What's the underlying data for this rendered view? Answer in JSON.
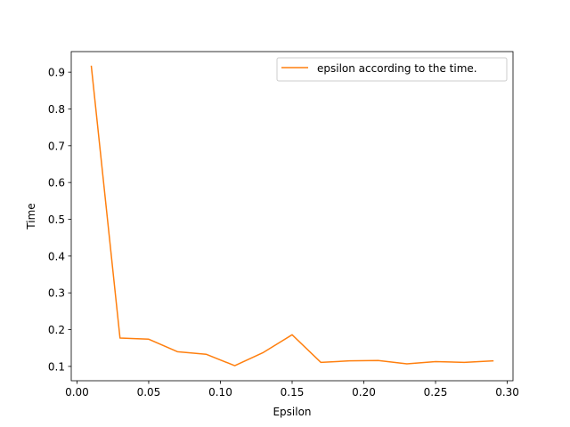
{
  "chart_data": {
    "type": "line",
    "title": "",
    "xlabel": "Epsilon",
    "ylabel": "Time",
    "xlim": [
      -0.004,
      0.304
    ],
    "ylim": [
      0.061,
      0.956
    ],
    "xticks": [
      0.0,
      0.05,
      0.1,
      0.15,
      0.2,
      0.25,
      0.3
    ],
    "xtick_labels": [
      "0.00",
      "0.05",
      "0.10",
      "0.15",
      "0.20",
      "0.25",
      "0.30"
    ],
    "yticks": [
      0.1,
      0.2,
      0.3,
      0.4,
      0.5,
      0.6,
      0.7,
      0.8,
      0.9
    ],
    "ytick_labels": [
      "0.1",
      "0.2",
      "0.3",
      "0.4",
      "0.5",
      "0.6",
      "0.7",
      "0.8",
      "0.9"
    ],
    "grid": false,
    "legend": {
      "placement": "upper-right"
    },
    "series": [
      {
        "name": "epsilon according to the time.",
        "color": "#ff7f0e",
        "x": [
          0.01,
          0.03,
          0.05,
          0.07,
          0.09,
          0.11,
          0.13,
          0.15,
          0.17,
          0.19,
          0.21,
          0.23,
          0.25,
          0.27,
          0.29
        ],
        "y": [
          0.916,
          0.177,
          0.174,
          0.14,
          0.133,
          0.102,
          0.138,
          0.186,
          0.111,
          0.115,
          0.116,
          0.107,
          0.113,
          0.111,
          0.115
        ]
      }
    ]
  }
}
